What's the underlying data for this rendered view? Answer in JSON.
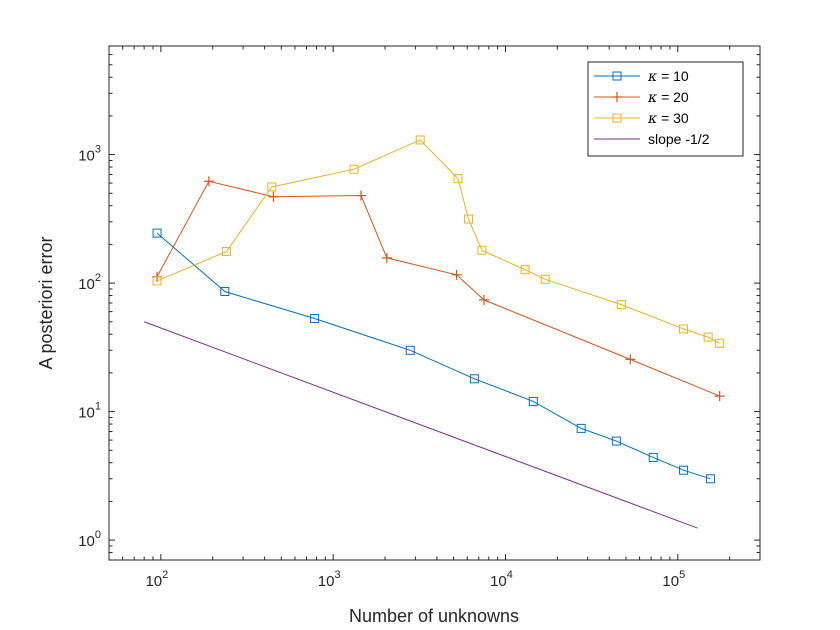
{
  "chart_data": {
    "type": "line",
    "title": "",
    "xlabel": "Number of unknowns",
    "ylabel": "A posteriori error",
    "xscale": "log",
    "yscale": "log",
    "xlim": [
      50,
      300000
    ],
    "ylim": [
      0.7,
      7000
    ],
    "x_ticks": [
      {
        "base": "10",
        "exp": "2",
        "value": 100
      },
      {
        "base": "10",
        "exp": "3",
        "value": 1000
      },
      {
        "base": "10",
        "exp": "4",
        "value": 10000
      },
      {
        "base": "10",
        "exp": "5",
        "value": 100000
      }
    ],
    "y_ticks": [
      {
        "base": "10",
        "exp": "0",
        "value": 1
      },
      {
        "base": "10",
        "exp": "1",
        "value": 10
      },
      {
        "base": "10",
        "exp": "2",
        "value": 100
      },
      {
        "base": "10",
        "exp": "3",
        "value": 1000
      }
    ],
    "legend_position": "top-right",
    "series": [
      {
        "name": "κ = 10",
        "symbol": "κ",
        "rest": " = 10",
        "color": "#0072BD",
        "marker": "square",
        "x": [
          95,
          235,
          780,
          2800,
          6600,
          14500,
          27500,
          44000,
          72000,
          108000,
          155000
        ],
        "y": [
          245,
          86,
          53,
          30,
          18,
          12,
          7.4,
          5.9,
          4.4,
          3.5,
          3.0
        ]
      },
      {
        "name": "κ = 20",
        "symbol": "κ",
        "rest": " = 20",
        "color": "#D95319",
        "marker": "plus",
        "x": [
          95,
          190,
          450,
          1450,
          2050,
          5200,
          7500,
          53000,
          175000
        ],
        "y": [
          112,
          620,
          470,
          480,
          157,
          116,
          74,
          25.5,
          13.2
        ]
      },
      {
        "name": "κ = 30",
        "symbol": "κ",
        "rest": " = 30",
        "color": "#EDB120",
        "marker": "square",
        "x": [
          95,
          240,
          440,
          1320,
          3200,
          5300,
          6100,
          7300,
          13000,
          17000,
          47000,
          108000,
          150000,
          175000
        ],
        "y": [
          104,
          176,
          560,
          770,
          1300,
          650,
          315,
          180,
          127,
          107,
          68,
          44,
          38,
          34
        ]
      },
      {
        "name": "slope -1/2",
        "symbol": "",
        "rest": "slope -1/2",
        "color": "#7E2F8E",
        "marker": "none",
        "x": [
          80,
          130000
        ],
        "y": [
          50,
          1.24
        ]
      }
    ]
  }
}
